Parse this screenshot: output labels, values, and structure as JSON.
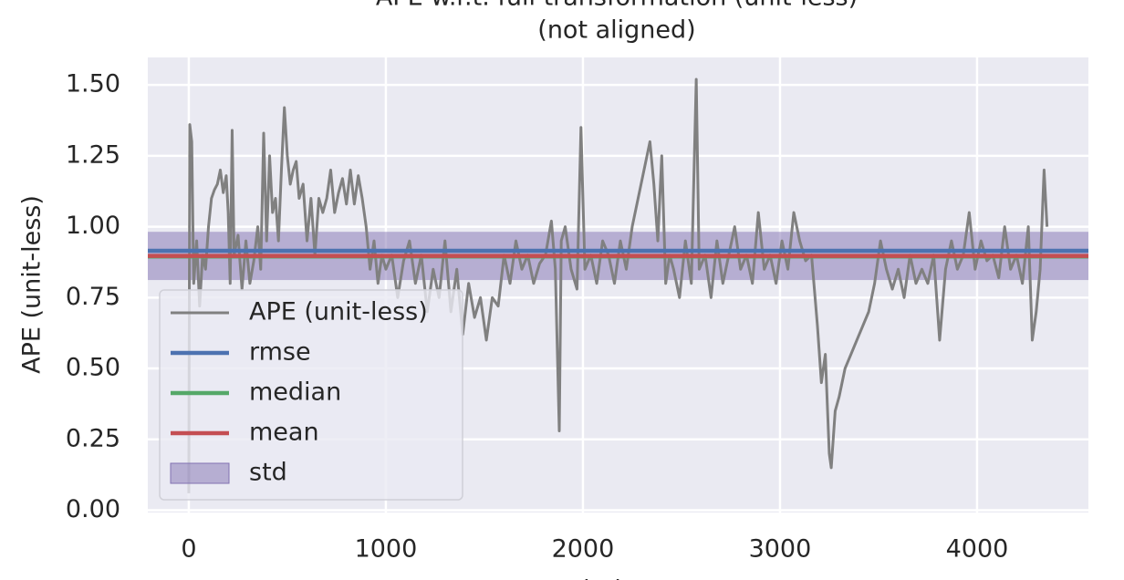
{
  "chart_data": {
    "type": "line",
    "title": "APE w.r.t. full transformation (unit-less)",
    "subtitle": "(not aligned)",
    "x_label": "index",
    "y_label": "APE (unit-less)",
    "xlim": [
      -208,
      4565
    ],
    "ylim": [
      -0.008,
      1.597
    ],
    "xticks": [
      0,
      1000,
      2000,
      3000,
      4000
    ],
    "yticks": [
      {
        "value": 0,
        "label": "0.00"
      },
      0.25,
      {
        "value": 0.5,
        "label": "0.50"
      },
      0.75,
      {
        "value": 1,
        "label": "1.00"
      },
      1.25,
      {
        "value": 1.5,
        "label": "1.50"
      }
    ],
    "grid": true,
    "legend": "lower left",
    "series": [
      {
        "name": "APE (unit-less)",
        "color": "#808080",
        "x": [
          0,
          5,
          15,
          25,
          40,
          55,
          70,
          85,
          100,
          115,
          130,
          145,
          160,
          175,
          190,
          200,
          210,
          220,
          230,
          250,
          270,
          290,
          310,
          330,
          350,
          365,
          380,
          395,
          410,
          425,
          440,
          455,
          470,
          485,
          500,
          515,
          530,
          545,
          560,
          580,
          600,
          620,
          640,
          660,
          680,
          700,
          720,
          740,
          760,
          780,
          800,
          820,
          840,
          860,
          880,
          900,
          920,
          940,
          960,
          980,
          1000,
          1030,
          1060,
          1090,
          1120,
          1150,
          1180,
          1210,
          1240,
          1270,
          1300,
          1330,
          1360,
          1390,
          1420,
          1450,
          1480,
          1510,
          1540,
          1570,
          1600,
          1630,
          1660,
          1690,
          1720,
          1750,
          1780,
          1810,
          1840,
          1860,
          1880,
          1890,
          1910,
          1940,
          1970,
          1990,
          2010,
          2040,
          2070,
          2100,
          2130,
          2160,
          2190,
          2220,
          2250,
          2280,
          2310,
          2340,
          2360,
          2380,
          2400,
          2420,
          2440,
          2460,
          2490,
          2520,
          2550,
          2575,
          2590,
          2620,
          2650,
          2680,
          2710,
          2740,
          2770,
          2800,
          2830,
          2860,
          2890,
          2920,
          2950,
          2980,
          3010,
          3040,
          3070,
          3100,
          3130,
          3160,
          3190,
          3210,
          3230,
          3250,
          3260,
          3280,
          3300,
          3330,
          3360,
          3390,
          3420,
          3450,
          3480,
          3510,
          3540,
          3570,
          3600,
          3630,
          3660,
          3690,
          3720,
          3750,
          3780,
          3810,
          3840,
          3870,
          3900,
          3930,
          3960,
          3990,
          4020,
          4050,
          4080,
          4110,
          4140,
          4170,
          4200,
          4230,
          4260,
          4280,
          4300,
          4320,
          4340,
          4355
        ],
        "values": [
          0.06,
          1.36,
          1.3,
          0.8,
          0.95,
          0.72,
          0.9,
          0.85,
          1.0,
          1.1,
          1.13,
          1.15,
          1.2,
          1.12,
          1.18,
          1.05,
          0.8,
          1.34,
          0.9,
          0.97,
          0.78,
          0.95,
          0.8,
          0.88,
          1.0,
          0.85,
          1.33,
          0.95,
          1.25,
          1.05,
          1.1,
          0.95,
          1.2,
          1.42,
          1.25,
          1.15,
          1.2,
          1.23,
          1.1,
          1.15,
          0.95,
          1.1,
          0.9,
          1.1,
          1.05,
          1.1,
          1.2,
          1.05,
          1.12,
          1.17,
          1.08,
          1.2,
          1.08,
          1.18,
          1.1,
          1.0,
          0.85,
          0.95,
          0.8,
          0.9,
          0.85,
          0.9,
          0.75,
          0.88,
          0.95,
          0.8,
          0.9,
          0.7,
          0.85,
          0.75,
          0.95,
          0.7,
          0.85,
          0.62,
          0.8,
          0.68,
          0.75,
          0.6,
          0.75,
          0.72,
          0.9,
          0.8,
          0.95,
          0.85,
          0.9,
          0.8,
          0.87,
          0.9,
          1.02,
          0.85,
          0.28,
          0.95,
          1.0,
          0.85,
          0.78,
          1.35,
          0.85,
          0.9,
          0.8,
          0.95,
          0.9,
          0.8,
          0.95,
          0.85,
          1.0,
          1.1,
          1.2,
          1.3,
          1.15,
          0.95,
          1.25,
          0.8,
          0.9,
          0.85,
          0.75,
          0.95,
          0.8,
          1.52,
          0.85,
          0.9,
          0.75,
          0.95,
          0.8,
          0.9,
          1.0,
          0.85,
          0.9,
          0.8,
          1.05,
          0.85,
          0.9,
          0.8,
          0.95,
          0.85,
          1.05,
          0.95,
          0.88,
          0.9,
          0.65,
          0.45,
          0.55,
          0.2,
          0.15,
          0.35,
          0.4,
          0.5,
          0.55,
          0.6,
          0.65,
          0.7,
          0.8,
          0.95,
          0.85,
          0.78,
          0.85,
          0.75,
          0.9,
          0.8,
          0.85,
          0.8,
          0.9,
          0.6,
          0.85,
          0.95,
          0.85,
          0.9,
          1.05,
          0.85,
          0.95,
          0.88,
          0.9,
          0.82,
          1.0,
          0.85,
          0.9,
          0.8,
          1.0,
          0.6,
          0.7,
          0.85,
          1.2,
          1.0
        ]
      }
    ],
    "stats": [
      {
        "name": "rmse",
        "color": "#4c72b0",
        "value": 0.915
      },
      {
        "name": "median",
        "color": "#55a868",
        "value": 0.895
      },
      {
        "name": "mean",
        "color": "#c44e52",
        "value": 0.897
      }
    ],
    "std": {
      "name": "std",
      "color": "#8172b2",
      "value": 0.085
    }
  }
}
